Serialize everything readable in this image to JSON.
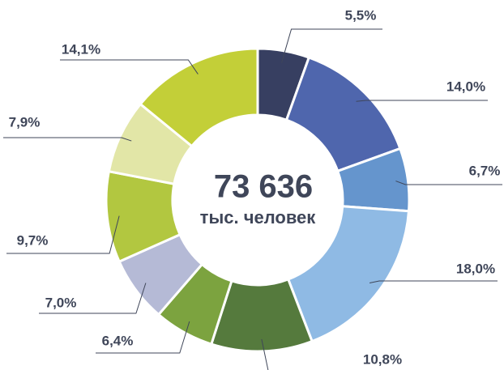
{
  "chart_data": {
    "type": "donut",
    "center_text": [
      "73 636",
      "тыс. человек"
    ],
    "values": [
      5.5,
      14.0,
      6.7,
      18.0,
      10.8,
      6.4,
      7.0,
      9.7,
      7.9,
      14.1
    ],
    "value_labels": [
      "5,5%",
      "14,0%",
      "6,7%",
      "18,0%",
      "10,8%",
      "6,4%",
      "7,0%",
      "9,7%",
      "7,9%",
      "14,1%"
    ],
    "colors": [
      "#373f61",
      "#4f66ad",
      "#6595cd",
      "#8fbae4",
      "#557a3d",
      "#7ca33f",
      "#b5bad6",
      "#b2c740",
      "#e2e6a7",
      "#c3cf38"
    ]
  }
}
